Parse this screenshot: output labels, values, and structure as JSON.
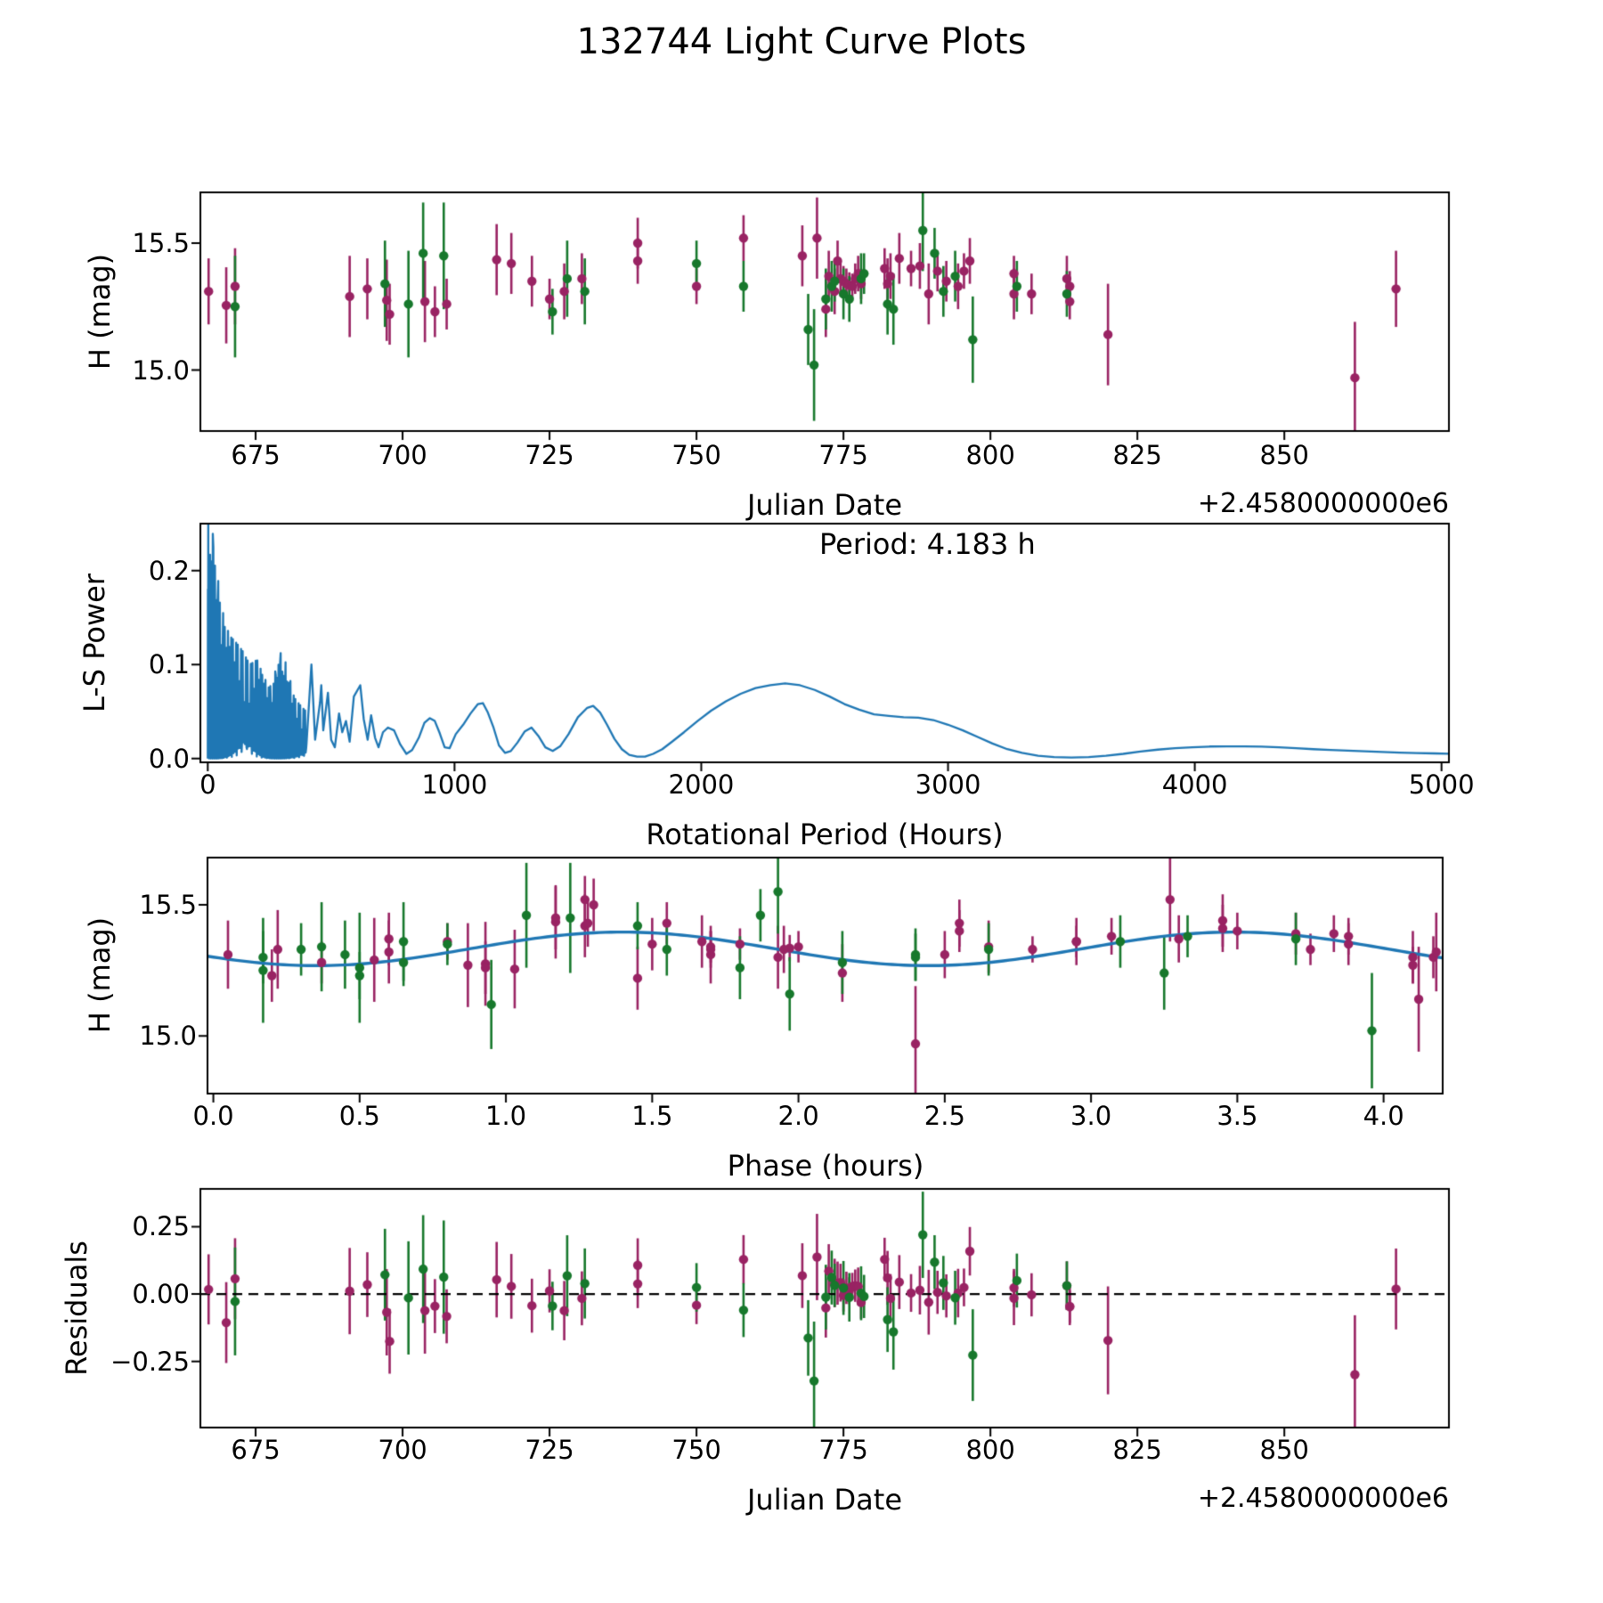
{
  "title": "132744 Light Curve Plots",
  "colors": {
    "series1": "#992363",
    "series2": "#17782c",
    "fit_line": "#1f77b4",
    "periodogram_line": "#1f77b4",
    "zero_line": "#000000",
    "axis": "#000000",
    "background": "#ffffff"
  },
  "chart_data": [
    {
      "name": "light-curve",
      "type": "scatter",
      "xlabel": "Julian Date",
      "x_offset": "+2.4580000000e6",
      "ylabel": "H (mag)",
      "xlim": [
        665.6,
        878.0
      ],
      "ylim": [
        14.76,
        15.7
      ],
      "xticks": {
        "values": [
          675,
          700,
          725,
          750,
          775,
          800,
          825,
          850
        ],
        "labels": [
          "675",
          "700",
          "725",
          "750",
          "775",
          "800",
          "825",
          "850"
        ]
      },
      "yticks": {
        "values": [
          15.0,
          15.5
        ],
        "labels": [
          "15.0",
          "15.5"
        ]
      },
      "point_fields": [
        "julian_date_minus_2458000",
        "phase_hours",
        "H_mag",
        "H_err"
      ],
      "series": [
        {
          "name": "series1",
          "color": "#992363",
          "points": [
            [
              667.0,
              0.05,
              15.31,
              0.13
            ],
            [
              670.0,
              1.03,
              15.255,
              0.15
            ],
            [
              671.5,
              0.22,
              15.33,
              0.15
            ],
            [
              691.0,
              0.55,
              15.29,
              0.16
            ],
            [
              694.0,
              0.6,
              15.32,
              0.12
            ],
            [
              697.3,
              0.93,
              15.275,
              0.16
            ],
            [
              697.8,
              1.45,
              15.22,
              0.12
            ],
            [
              703.8,
              0.87,
              15.27,
              0.16
            ],
            [
              705.5,
              0.2,
              15.23,
              0.1
            ],
            [
              707.5,
              0.93,
              15.26,
              0.1
            ],
            [
              716.0,
              1.17,
              15.435,
              0.14
            ],
            [
              718.5,
              1.27,
              15.42,
              0.12
            ],
            [
              722.0,
              1.5,
              15.35,
              0.1
            ],
            [
              725.0,
              0.37,
              15.28,
              0.08
            ],
            [
              727.5,
              1.7,
              15.31,
              0.11
            ],
            [
              730.5,
              1.67,
              15.36,
              0.1
            ],
            [
              740.0,
              1.3,
              15.5,
              0.1
            ],
            [
              740.0,
              1.28,
              15.43,
              0.09
            ],
            [
              750.0,
              1.7,
              15.33,
              0.07
            ],
            [
              758.0,
              1.27,
              15.52,
              0.09
            ],
            [
              768.0,
              1.17,
              15.45,
              0.12
            ],
            [
              770.5,
              3.27,
              15.52,
              0.16
            ],
            [
              772.0,
              2.15,
              15.24,
              0.11
            ],
            [
              772.5,
              0.6,
              15.37,
              0.1
            ],
            [
              773.5,
              2.5,
              15.31,
              0.09
            ],
            [
              774.0,
              1.55,
              15.43,
              0.08
            ],
            [
              774.5,
              0.8,
              15.36,
              0.07
            ],
            [
              775.0,
              1.8,
              15.35,
              0.06
            ],
            [
              775.5,
              2.0,
              15.34,
              0.06
            ],
            [
              776.0,
              1.97,
              15.335,
              0.05
            ],
            [
              776.5,
              2.8,
              15.33,
              0.05
            ],
            [
              777.0,
              2.95,
              15.36,
              0.06
            ],
            [
              777.5,
              3.07,
              15.38,
              0.07
            ],
            [
              778.0,
              1.7,
              15.34,
              0.06
            ],
            [
              782.0,
              2.55,
              15.4,
              0.08
            ],
            [
              782.5,
              2.65,
              15.34,
              0.1
            ],
            [
              783.0,
              3.3,
              15.37,
              0.09
            ],
            [
              784.5,
              3.45,
              15.44,
              0.1
            ],
            [
              786.5,
              3.5,
              15.4,
              0.07
            ],
            [
              788.0,
              3.45,
              15.41,
              0.09
            ],
            [
              789.5,
              1.93,
              15.3,
              0.12
            ],
            [
              791.0,
              3.7,
              15.39,
              0.08
            ],
            [
              792.5,
              3.88,
              15.35,
              0.08
            ],
            [
              794.5,
              1.95,
              15.33,
              0.09
            ],
            [
              795.5,
              3.83,
              15.39,
              0.07
            ],
            [
              796.5,
              2.55,
              15.43,
              0.09
            ],
            [
              804.0,
              3.88,
              15.38,
              0.07
            ],
            [
              804.0,
              4.1,
              15.3,
              0.1
            ],
            [
              807.0,
              4.17,
              15.3,
              0.08
            ],
            [
              813.0,
              2.95,
              15.36,
              0.09
            ],
            [
              813.5,
              3.75,
              15.33,
              0.06
            ],
            [
              813.5,
              4.1,
              15.27,
              0.07
            ],
            [
              820.0,
              4.12,
              15.14,
              0.2
            ],
            [
              862.0,
              2.4,
              14.97,
              0.22
            ],
            [
              869.0,
              4.18,
              15.32,
              0.15
            ]
          ]
        },
        {
          "name": "series2",
          "color": "#17782c",
          "points": [
            [
              671.5,
              0.17,
              15.25,
              0.2
            ],
            [
              697.0,
              0.37,
              15.34,
              0.17
            ],
            [
              701.0,
              0.5,
              15.26,
              0.21
            ],
            [
              703.5,
              1.07,
              15.46,
              0.2
            ],
            [
              707.0,
              1.22,
              15.45,
              0.21
            ],
            [
              725.5,
              0.5,
              15.23,
              0.09
            ],
            [
              728.0,
              0.65,
              15.36,
              0.15
            ],
            [
              731.0,
              0.45,
              15.31,
              0.13
            ],
            [
              750.0,
              1.45,
              15.42,
              0.09
            ],
            [
              758.0,
              1.55,
              15.33,
              0.1
            ],
            [
              769.0,
              1.97,
              15.16,
              0.14
            ],
            [
              770.0,
              3.96,
              15.02,
              0.22
            ],
            [
              772.0,
              2.15,
              15.28,
              0.12
            ],
            [
              773.0,
              0.3,
              15.33,
              0.1
            ],
            [
              773.5,
              0.8,
              15.35,
              0.08
            ],
            [
              775.0,
              0.17,
              15.3,
              0.1
            ],
            [
              776.0,
              0.65,
              15.28,
              0.09
            ],
            [
              778.0,
              3.1,
              15.36,
              0.1
            ],
            [
              778.5,
              3.33,
              15.38,
              0.08
            ],
            [
              782.5,
              1.8,
              15.26,
              0.12
            ],
            [
              783.5,
              3.25,
              15.24,
              0.14
            ],
            [
              788.5,
              1.93,
              15.55,
              0.16
            ],
            [
              790.5,
              1.87,
              15.46,
              0.1
            ],
            [
              792.0,
              2.4,
              15.31,
              0.1
            ],
            [
              794.0,
              3.7,
              15.37,
              0.1
            ],
            [
              797.0,
              0.95,
              15.12,
              0.17
            ],
            [
              804.5,
              2.65,
              15.33,
              0.1
            ],
            [
              813.0,
              2.4,
              15.3,
              0.09
            ]
          ]
        }
      ]
    },
    {
      "name": "periodogram",
      "type": "line",
      "annotation": "Period: 4.183 h",
      "best_period_hours": 4.183,
      "xlabel": "Rotational Period (Hours)",
      "ylabel": "L-S Power",
      "xlim": [
        -30,
        5030
      ],
      "ylim": [
        -0.004,
        0.25
      ],
      "xticks": {
        "values": [
          0,
          1000,
          2000,
          3000,
          4000,
          5000
        ],
        "labels": [
          "0",
          "1000",
          "2000",
          "3000",
          "4000",
          "5000"
        ]
      },
      "yticks": {
        "values": [
          0.0,
          0.1,
          0.2
        ],
        "labels": [
          "0.0",
          "0.1",
          "0.2"
        ]
      },
      "comb_x_end": 400,
      "comb_envelope": [
        [
          0,
          0.26
        ],
        [
          15,
          0.25
        ],
        [
          30,
          0.22
        ],
        [
          50,
          0.17
        ],
        [
          70,
          0.145
        ],
        [
          90,
          0.13
        ],
        [
          110,
          0.125
        ],
        [
          140,
          0.115
        ],
        [
          170,
          0.1
        ],
        [
          200,
          0.105
        ],
        [
          230,
          0.085
        ],
        [
          260,
          0.075
        ],
        [
          290,
          0.115
        ],
        [
          320,
          0.1
        ],
        [
          350,
          0.065
        ],
        [
          380,
          0.055
        ],
        [
          400,
          0.05
        ]
      ],
      "curve": [
        [
          400,
          0.015
        ],
        [
          420,
          0.1
        ],
        [
          435,
          0.02
        ],
        [
          455,
          0.06
        ],
        [
          460,
          0.078
        ],
        [
          468,
          0.03
        ],
        [
          487,
          0.07
        ],
        [
          500,
          0.02
        ],
        [
          515,
          0.012
        ],
        [
          532,
          0.048
        ],
        [
          545,
          0.028
        ],
        [
          560,
          0.04
        ],
        [
          575,
          0.018
        ],
        [
          592,
          0.066
        ],
        [
          618,
          0.078
        ],
        [
          632,
          0.042
        ],
        [
          648,
          0.02
        ],
        [
          662,
          0.046
        ],
        [
          678,
          0.022
        ],
        [
          692,
          0.012
        ],
        [
          710,
          0.028
        ],
        [
          730,
          0.033
        ],
        [
          755,
          0.03
        ],
        [
          780,
          0.015
        ],
        [
          805,
          0.005
        ],
        [
          828,
          0.009
        ],
        [
          855,
          0.022
        ],
        [
          878,
          0.038
        ],
        [
          900,
          0.043
        ],
        [
          920,
          0.04
        ],
        [
          940,
          0.027
        ],
        [
          960,
          0.012
        ],
        [
          980,
          0.011
        ],
        [
          1005,
          0.026
        ],
        [
          1035,
          0.036
        ],
        [
          1065,
          0.048
        ],
        [
          1095,
          0.058
        ],
        [
          1115,
          0.059
        ],
        [
          1135,
          0.049
        ],
        [
          1158,
          0.033
        ],
        [
          1180,
          0.014
        ],
        [
          1205,
          0.006
        ],
        [
          1228,
          0.008
        ],
        [
          1255,
          0.017
        ],
        [
          1285,
          0.029
        ],
        [
          1312,
          0.033
        ],
        [
          1340,
          0.024
        ],
        [
          1368,
          0.012
        ],
        [
          1398,
          0.008
        ],
        [
          1428,
          0.013
        ],
        [
          1462,
          0.026
        ],
        [
          1500,
          0.044
        ],
        [
          1538,
          0.054
        ],
        [
          1562,
          0.056
        ],
        [
          1590,
          0.049
        ],
        [
          1618,
          0.036
        ],
        [
          1648,
          0.021
        ],
        [
          1678,
          0.01
        ],
        [
          1708,
          0.004
        ],
        [
          1740,
          0.002
        ],
        [
          1772,
          0.002
        ],
        [
          1805,
          0.005
        ],
        [
          1842,
          0.01
        ],
        [
          1882,
          0.018
        ],
        [
          1930,
          0.028
        ],
        [
          1985,
          0.04
        ],
        [
          2040,
          0.051
        ],
        [
          2100,
          0.061
        ],
        [
          2160,
          0.069
        ],
        [
          2220,
          0.075
        ],
        [
          2280,
          0.078
        ],
        [
          2340,
          0.08
        ],
        [
          2400,
          0.078
        ],
        [
          2460,
          0.073
        ],
        [
          2520,
          0.066
        ],
        [
          2580,
          0.058
        ],
        [
          2640,
          0.052
        ],
        [
          2700,
          0.047
        ],
        [
          2760,
          0.0455
        ],
        [
          2820,
          0.044
        ],
        [
          2880,
          0.0435
        ],
        [
          2940,
          0.041
        ],
        [
          3000,
          0.036
        ],
        [
          3060,
          0.03
        ],
        [
          3120,
          0.023
        ],
        [
          3180,
          0.016
        ],
        [
          3240,
          0.01
        ],
        [
          3300,
          0.006
        ],
        [
          3365,
          0.003
        ],
        [
          3430,
          0.0015
        ],
        [
          3500,
          0.001
        ],
        [
          3570,
          0.0015
        ],
        [
          3640,
          0.003
        ],
        [
          3710,
          0.005
        ],
        [
          3780,
          0.0075
        ],
        [
          3850,
          0.0095
        ],
        [
          3920,
          0.011
        ],
        [
          3990,
          0.012
        ],
        [
          4060,
          0.0128
        ],
        [
          4130,
          0.013
        ],
        [
          4200,
          0.013
        ],
        [
          4270,
          0.0127
        ],
        [
          4340,
          0.012
        ],
        [
          4410,
          0.011
        ],
        [
          4480,
          0.01
        ],
        [
          4550,
          0.0092
        ],
        [
          4620,
          0.0084
        ],
        [
          4690,
          0.0077
        ],
        [
          4760,
          0.007
        ],
        [
          4830,
          0.0064
        ],
        [
          4900,
          0.0059
        ],
        [
          4970,
          0.0055
        ],
        [
          5030,
          0.0052
        ]
      ]
    },
    {
      "name": "phased-light-curve",
      "type": "scatter+line",
      "xlabel": "Phase (hours)",
      "ylabel": "H (mag)",
      "xlim": [
        -0.02,
        4.202
      ],
      "ylim": [
        14.78,
        15.68
      ],
      "xticks": {
        "values": [
          0.0,
          0.5,
          1.0,
          1.5,
          2.0,
          2.5,
          3.0,
          3.5,
          4.0
        ],
        "labels": [
          "0.0",
          "0.5",
          "1.0",
          "1.5",
          "2.0",
          "2.5",
          "3.0",
          "3.5",
          "4.0"
        ]
      },
      "yticks": {
        "values": [
          15.0,
          15.5
        ],
        "labels": [
          "15.0",
          "15.5"
        ]
      },
      "series_ref": 0,
      "fit": {
        "mean": 15.332,
        "amplitude": 0.064,
        "period": 2.0915,
        "x_ref": 0.875
      }
    },
    {
      "name": "residuals",
      "type": "scatter",
      "xlabel": "Julian Date",
      "x_offset": "+2.4580000000e6",
      "ylabel": "Residuals",
      "xlim": [
        665.6,
        878.0
      ],
      "ylim": [
        -0.495,
        0.39
      ],
      "xticks": {
        "values": [
          675,
          700,
          725,
          750,
          775,
          800,
          825,
          850
        ],
        "labels": [
          "675",
          "700",
          "725",
          "750",
          "775",
          "800",
          "825",
          "850"
        ]
      },
      "yticks": {
        "values": [
          -0.25,
          0.0,
          0.25
        ],
        "labels": [
          "−0.25",
          "0.00",
          "0.25"
        ]
      },
      "series_ref": 0,
      "zero_line": true
    }
  ]
}
